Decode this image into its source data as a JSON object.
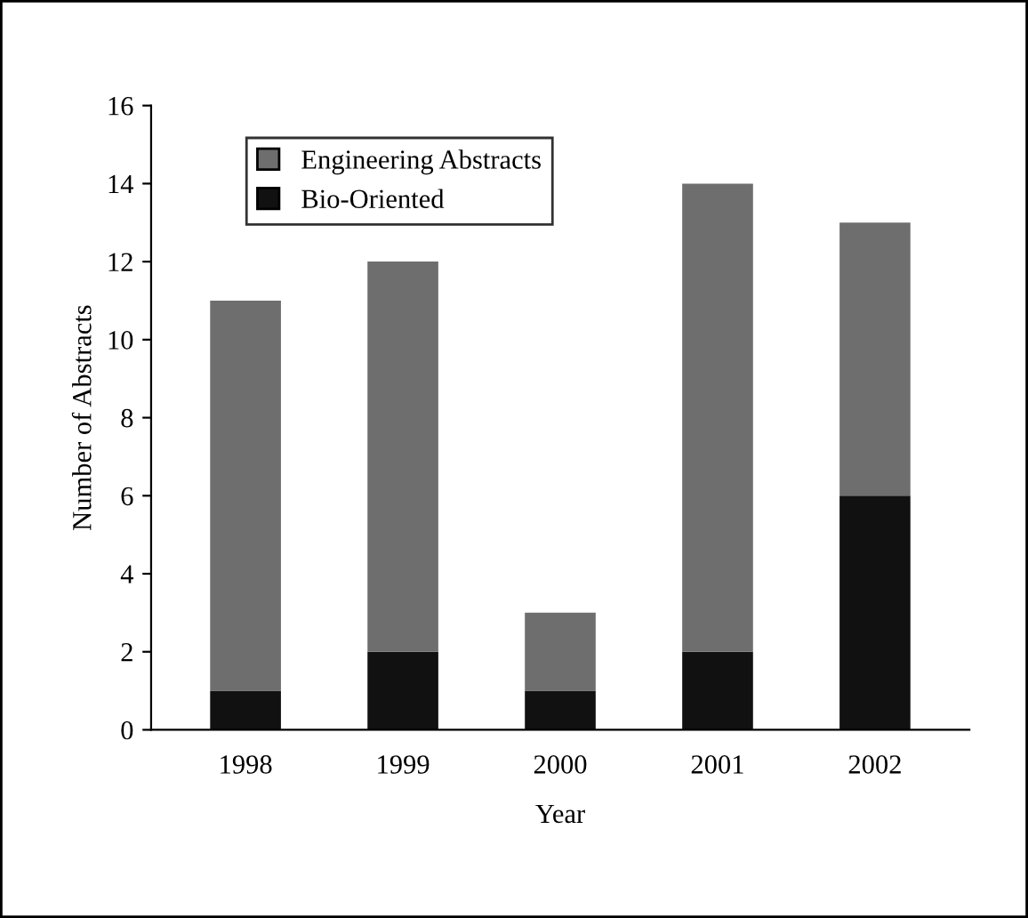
{
  "chart_data": {
    "type": "bar",
    "stacked": true,
    "xlabel": "Year",
    "ylabel": "Number of Abstracts",
    "categories": [
      "1998",
      "1999",
      "2000",
      "2001",
      "2002"
    ],
    "series": [
      {
        "name": "Bio-Oriented",
        "color": "#111111",
        "values": [
          1,
          2,
          1,
          2,
          6
        ]
      },
      {
        "name": "Engineering Abstracts",
        "color": "#6e6e6e",
        "values": [
          10,
          10,
          2,
          12,
          7
        ]
      }
    ],
    "ylim": [
      0,
      16
    ],
    "yticks": [
      0,
      2,
      4,
      6,
      8,
      10,
      12,
      14,
      16
    ],
    "grid": false,
    "legend": "top left"
  }
}
